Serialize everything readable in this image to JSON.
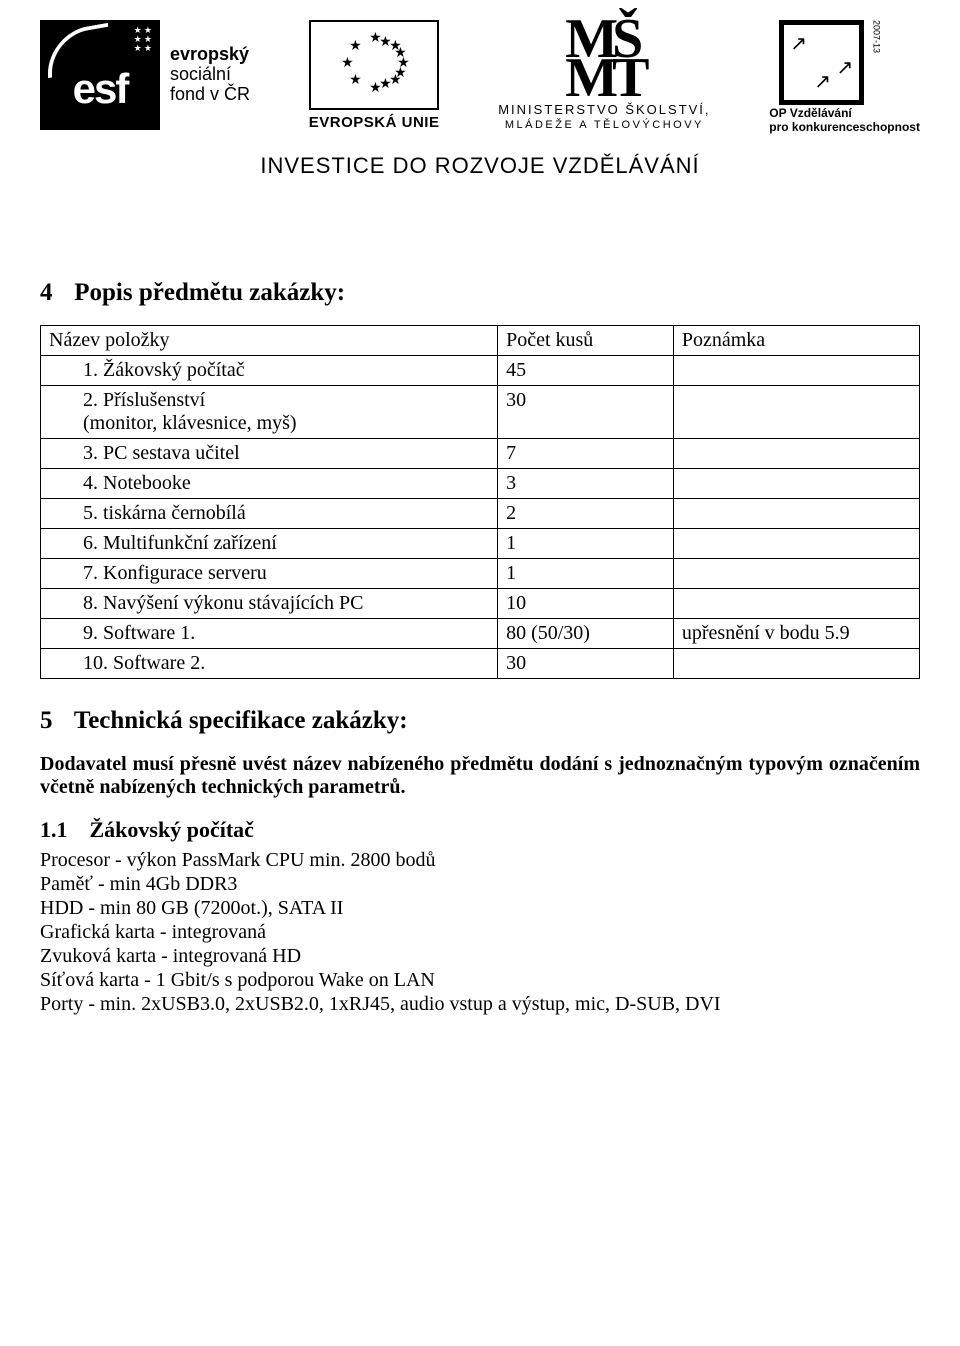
{
  "logos": {
    "esf": {
      "big": "esf",
      "line1": "evropský",
      "line2": "sociální",
      "line3": "fond v ČR",
      "stars": "★ ★\n★ ★\n★ ★"
    },
    "eu": {
      "caption": "EVROPSKÁ UNIE"
    },
    "msmt": {
      "letters_top": "MŠ",
      "letters_bot": "MT",
      "hat": "ˇ",
      "line1": "MINISTERSTVO ŠKOLSTVÍ,",
      "line2": "MLÁDEŽE A TĚLOVÝCHOVY"
    },
    "op": {
      "years": "2007-13",
      "line1": "OP Vzdělávání",
      "line2": "pro konkurenceschopnost"
    }
  },
  "tagline": "INVESTICE DO ROZVOJE VZDĚLÁVÁNÍ",
  "section4": {
    "num": "4",
    "title": "Popis předmětu zakázky:",
    "table": {
      "headers": {
        "name": "Název položky",
        "qty": "Počet kusů",
        "note": "Poznámka"
      },
      "rows": [
        {
          "name": "1. Žákovský počítač",
          "qty": "45",
          "note": ""
        },
        {
          "name": "2. Příslušenství\n(monitor, klávesnice, myš)",
          "qty": "30",
          "note": ""
        },
        {
          "name": "3. PC sestava učitel",
          "qty": "7",
          "note": ""
        },
        {
          "name": "4. Notebooke",
          "qty": "3",
          "note": ""
        },
        {
          "name": "5. tiskárna černobílá",
          "qty": "2",
          "note": ""
        },
        {
          "name": "6. Multifunkční zařízení",
          "qty": "1",
          "note": ""
        },
        {
          "name": "7. Konfigurace serveru",
          "qty": "1",
          "note": ""
        },
        {
          "name": "8. Navýšení výkonu stávajících PC",
          "qty": "10",
          "note": ""
        },
        {
          "name": "9. Software 1.",
          "qty": "80 (50/30)",
          "note": "upřesnění v bodu 5.9"
        },
        {
          "name": "10. Software 2.",
          "qty": "30",
          "note": ""
        }
      ]
    }
  },
  "section5": {
    "num": "5",
    "title": "Technická specifikace zakázky:",
    "intro": "Dodavatel musí přesně uvést název nabízeného předmětu dodání s jednoznačným typovým označením včetně nabízených technických parametrů.",
    "sub": {
      "num": "1.1",
      "title": "Žákovský počítač"
    },
    "lines": [
      "Procesor - výkon PassMark CPU min. 2800 bodů",
      "Paměť - min 4Gb DDR3",
      "HDD - min 80 GB (7200ot.), SATA II",
      "Grafická karta - integrovaná",
      "Zvuková karta - integrovaná HD",
      "Síťová karta - 1 Gbit/s s podporou Wake on LAN",
      "Porty - min. 2xUSB3.0, 2xUSB2.0, 1xRJ45, audio vstup a výstup, mic, D-SUB, DVI"
    ]
  }
}
